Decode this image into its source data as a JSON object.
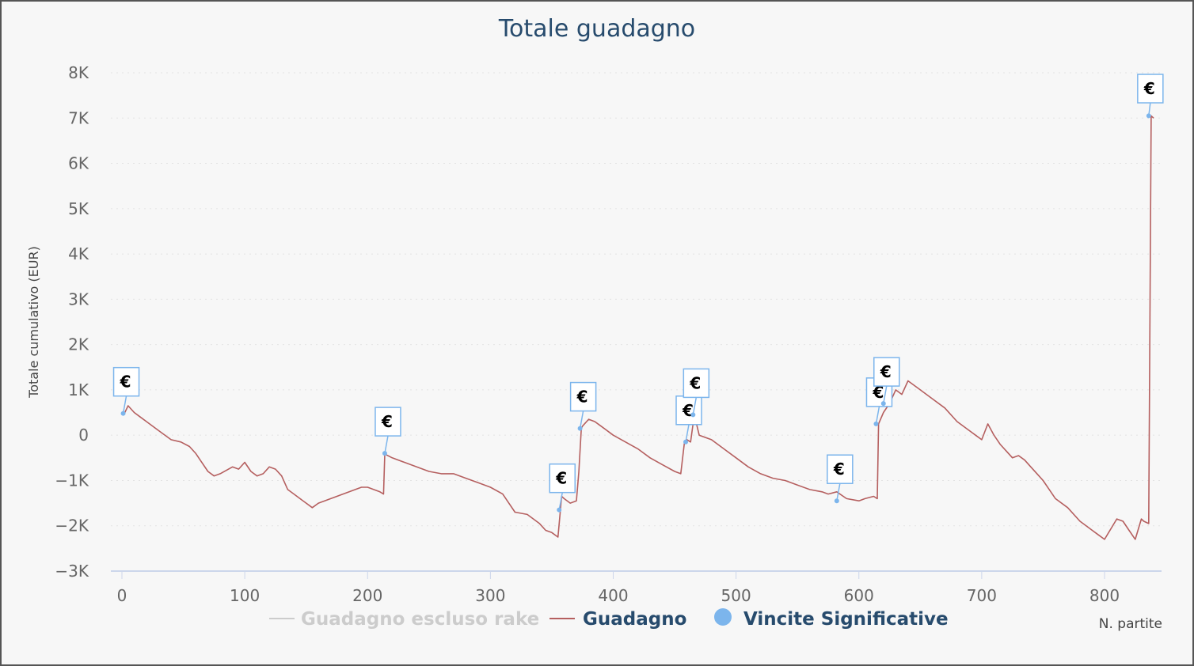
{
  "chart_data": {
    "type": "line",
    "title": "Totale guadagno",
    "xlabel": "N. partite",
    "ylabel": "Totale cumulativo (EUR)",
    "xlim": [
      -8,
      848
    ],
    "ylim": [
      -3000,
      8000
    ],
    "x_ticks": [
      {
        "value": 0,
        "label": "0"
      },
      {
        "value": 100,
        "label": "100"
      },
      {
        "value": 200,
        "label": "200"
      },
      {
        "value": 300,
        "label": "300"
      },
      {
        "value": 400,
        "label": "400"
      },
      {
        "value": 500,
        "label": "500"
      },
      {
        "value": 600,
        "label": "600"
      },
      {
        "value": 700,
        "label": "700"
      },
      {
        "value": 800,
        "label": "800"
      }
    ],
    "y_ticks": [
      {
        "value": 8000,
        "label": "8K"
      },
      {
        "value": 7000,
        "label": "7K"
      },
      {
        "value": 6000,
        "label": "6K"
      },
      {
        "value": 5000,
        "label": "5K"
      },
      {
        "value": 4000,
        "label": "4K"
      },
      {
        "value": 3000,
        "label": "3K"
      },
      {
        "value": 2000,
        "label": "2K"
      },
      {
        "value": 1000,
        "label": "1K"
      },
      {
        "value": 0,
        "label": "0"
      },
      {
        "value": -1000,
        "label": "−1K"
      },
      {
        "value": -2000,
        "label": "−2K"
      },
      {
        "value": -3000,
        "label": "−3K"
      }
    ],
    "grid": true,
    "legend_position": "bottom-center",
    "series": [
      {
        "name": "Guadagno escluso rake",
        "color": "#cccccc",
        "visible": false,
        "x": [],
        "y": []
      },
      {
        "name": "Guadagno",
        "color": "#b55f5f",
        "visible": true,
        "x": [
          0,
          2,
          5,
          10,
          15,
          20,
          30,
          40,
          48,
          55,
          60,
          70,
          75,
          80,
          90,
          95,
          100,
          105,
          110,
          115,
          120,
          125,
          130,
          135,
          140,
          145,
          150,
          155,
          160,
          165,
          170,
          175,
          180,
          185,
          190,
          195,
          200,
          205,
          210,
          213,
          214,
          215,
          220,
          230,
          240,
          250,
          260,
          270,
          280,
          290,
          300,
          310,
          320,
          330,
          340,
          345,
          350,
          355,
          357,
          358,
          360,
          365,
          370,
          372,
          374,
          375,
          380,
          385,
          390,
          400,
          410,
          420,
          430,
          440,
          450,
          455,
          458,
          460,
          463,
          466,
          470,
          480,
          490,
          500,
          510,
          520,
          530,
          540,
          550,
          560,
          570,
          575,
          582,
          590,
          600,
          605,
          612,
          615,
          616,
          620,
          625,
          630,
          635,
          640,
          650,
          660,
          670,
          680,
          690,
          695,
          700,
          705,
          710,
          715,
          720,
          725,
          730,
          735,
          740,
          745,
          750,
          755,
          760,
          770,
          780,
          790,
          795,
          800,
          810,
          815,
          820,
          825,
          830,
          832,
          836,
          838,
          840
        ],
        "y": [
          500,
          480,
          650,
          500,
          400,
          300,
          100,
          -100,
          -150,
          -250,
          -400,
          -800,
          -900,
          -850,
          -700,
          -750,
          -600,
          -800,
          -900,
          -850,
          -700,
          -750,
          -900,
          -1200,
          -1300,
          -1400,
          -1500,
          -1600,
          -1500,
          -1450,
          -1400,
          -1350,
          -1300,
          -1250,
          -1200,
          -1150,
          -1150,
          -1200,
          -1250,
          -1300,
          -400,
          -430,
          -500,
          -600,
          -700,
          -800,
          -850,
          -850,
          -950,
          -1050,
          -1150,
          -1300,
          -1700,
          -1750,
          -1950,
          -2100,
          -2150,
          -2250,
          -1650,
          -1350,
          -1400,
          -1500,
          -1450,
          -800,
          150,
          200,
          350,
          300,
          200,
          0,
          -150,
          -300,
          -500,
          -650,
          -800,
          -850,
          -150,
          -100,
          -150,
          450,
          0,
          -100,
          -300,
          -500,
          -700,
          -850,
          -950,
          -1000,
          -1100,
          -1200,
          -1250,
          -1300,
          -1250,
          -1400,
          -1450,
          -1400,
          -1350,
          -1400,
          250,
          500,
          700,
          1000,
          900,
          1200,
          1000,
          800,
          600,
          300,
          100,
          0,
          -100,
          250,
          0,
          -200,
          -350,
          -500,
          -450,
          -550,
          -700,
          -850,
          -1000,
          -1200,
          -1400,
          -1600,
          -1900,
          -2100,
          -2200,
          -2300,
          -1850,
          -1900,
          -2100,
          -2300,
          -1850,
          -1900,
          -1950,
          7050,
          7000
        ],
        "line_width": 1.6
      },
      {
        "name": "Vincite Significative",
        "color": "#7cb5ec",
        "visible": true,
        "points": [
          {
            "x": 1,
            "y": 480,
            "label": "€"
          },
          {
            "x": 214,
            "y": -400,
            "label": "€"
          },
          {
            "x": 356,
            "y": -1650,
            "label": "€"
          },
          {
            "x": 373,
            "y": 150,
            "label": "€"
          },
          {
            "x": 459,
            "y": -150,
            "label": "€"
          },
          {
            "x": 465,
            "y": 450,
            "label": "€"
          },
          {
            "x": 582,
            "y": -1450,
            "label": "€"
          },
          {
            "x": 614,
            "y": 250,
            "label": "€"
          },
          {
            "x": 620,
            "y": 700,
            "label": "€"
          },
          {
            "x": 836,
            "y": 7050,
            "label": "€"
          }
        ]
      }
    ]
  }
}
